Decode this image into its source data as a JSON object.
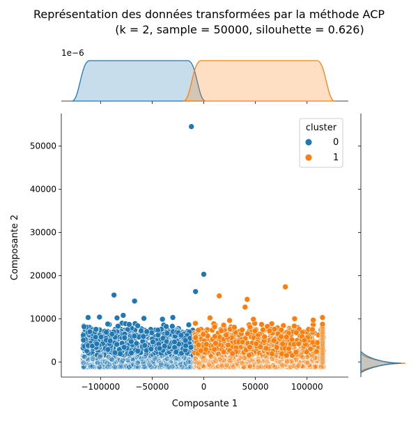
{
  "chart_data": {
    "type": "scatter",
    "title_line1": "Représentation des données transformées par la méthode ACP",
    "title_line2": "(k = 2, sample = 50000, silouhette = 0.626)",
    "xlabel": "Composante 1",
    "ylabel": "Composante 2",
    "xlim": [
      -138000,
      140000
    ],
    "ylim": [
      -3500,
      57500
    ],
    "x_ticks": [
      -100000,
      -50000,
      0,
      50000,
      100000
    ],
    "x_tick_labels": [
      "−100000",
      "−50000",
      "0",
      "50000",
      "100000"
    ],
    "y_ticks": [
      0,
      10000,
      20000,
      30000,
      40000,
      50000
    ],
    "y_tick_labels": [
      "0",
      "10000",
      "20000",
      "30000",
      "40000",
      "50000"
    ],
    "grid": false,
    "legend": {
      "title": "cluster",
      "placement": "top-right",
      "entries": [
        {
          "label": "0",
          "color": "#1f77b4"
        },
        {
          "label": "1",
          "color": "#ff7f0e"
        }
      ]
    },
    "series": [
      {
        "name": "0",
        "color": "#1f77b4",
        "x_range": [
          -117000,
          -9000
        ],
        "outliers": [
          {
            "x": -12000,
            "y": 54500
          },
          {
            "x": 0,
            "y": 20300
          },
          {
            "x": -8000,
            "y": 16300
          },
          {
            "x": -87000,
            "y": 15500
          },
          {
            "x": -67000,
            "y": 14100
          },
          {
            "x": -78000,
            "y": 10800
          },
          {
            "x": -101000,
            "y": 10400
          },
          {
            "x": -112000,
            "y": 10300
          },
          {
            "x": -58000,
            "y": 10100
          },
          {
            "x": -30000,
            "y": 10300
          },
          {
            "x": -40000,
            "y": 9900
          },
          {
            "x": -84000,
            "y": 10200
          }
        ]
      },
      {
        "name": "1",
        "color": "#ff7f0e",
        "x_range": [
          -9000,
          116000
        ],
        "outliers": [
          {
            "x": 79000,
            "y": 17400
          },
          {
            "x": 15000,
            "y": 15300
          },
          {
            "x": 42000,
            "y": 14500
          },
          {
            "x": 40000,
            "y": 12700
          },
          {
            "x": 6000,
            "y": 10200
          },
          {
            "x": 25000,
            "y": 9600
          },
          {
            "x": 48000,
            "y": 9900
          },
          {
            "x": 88000,
            "y": 10000
          },
          {
            "x": 106000,
            "y": 9700
          },
          {
            "x": 115000,
            "y": 10300
          }
        ]
      }
    ],
    "marginal_x": {
      "offset_label": "1e−6",
      "series": [
        {
          "name": "0",
          "color": "#1f77b4",
          "range": [
            -117000,
            -9000
          ]
        },
        {
          "name": "1",
          "color": "#ff7f0e",
          "range": [
            -9000,
            116000
          ]
        }
      ]
    },
    "marginal_y": {
      "series": [
        {
          "name": "0",
          "color": "#1f77b4"
        },
        {
          "name": "1",
          "color": "#ff7f0e"
        }
      ]
    }
  }
}
